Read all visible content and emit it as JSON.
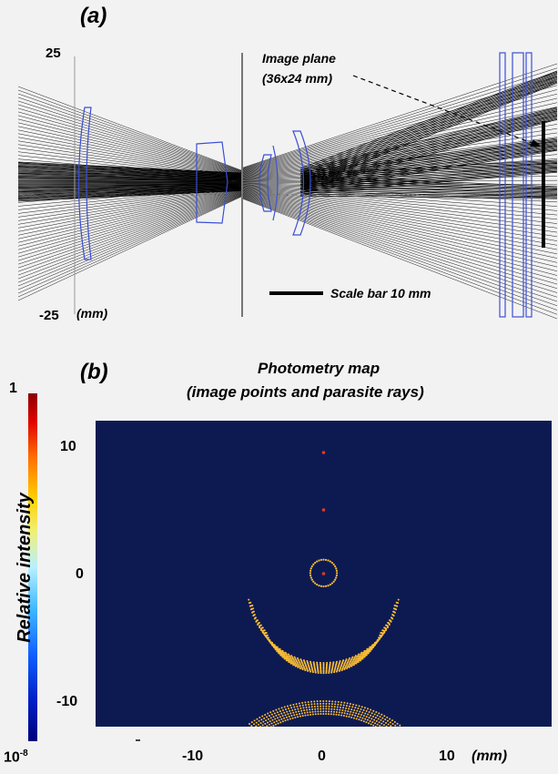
{
  "panel_a": {
    "label": "(a)",
    "y_top": "25",
    "y_bottom": "-25",
    "unit": "(mm)",
    "image_plane_line1": "Image plane",
    "image_plane_line2": "(36x24 mm)",
    "scale_bar": "Scale bar 10 mm",
    "colors": {
      "lens": "#3b4fd6",
      "ray": "#000000",
      "stop": "#777777"
    }
  },
  "panel_b": {
    "label": "(b)",
    "title_line1": "Photometry map",
    "title_line2": "(image points and parasite rays)",
    "colorbar_title": "Relative intensity",
    "colorbar_max": "1",
    "colorbar_min_base": "10",
    "colorbar_min_exp": "-8",
    "y_ticks": [
      "10",
      "0",
      "-10"
    ],
    "x_ticks": [
      "-10",
      "0",
      "10"
    ],
    "x_unit": "(mm)",
    "colors": {
      "background": "#0d1a52",
      "point": "#e23a1e",
      "ring": "#ffbf33"
    }
  },
  "chart_data": {
    "type": "scatter",
    "title": "Photometry map (image points and parasite rays)",
    "xlabel": "(mm)",
    "colorbar": "Relative intensity",
    "colorbar_range": [
      "10^-8",
      "1"
    ],
    "xlim": [
      -18,
      18
    ],
    "ylim": [
      -12,
      12
    ],
    "series": [
      {
        "name": "image points",
        "points": [
          [
            0,
            9.5
          ],
          [
            0,
            5
          ],
          [
            0,
            0
          ]
        ]
      },
      {
        "name": "parasite rays",
        "features": "ring at (0,0) r~1; crescent arcs centered near (0,-1) radii 5-6; arcs near y=-10"
      }
    ]
  }
}
